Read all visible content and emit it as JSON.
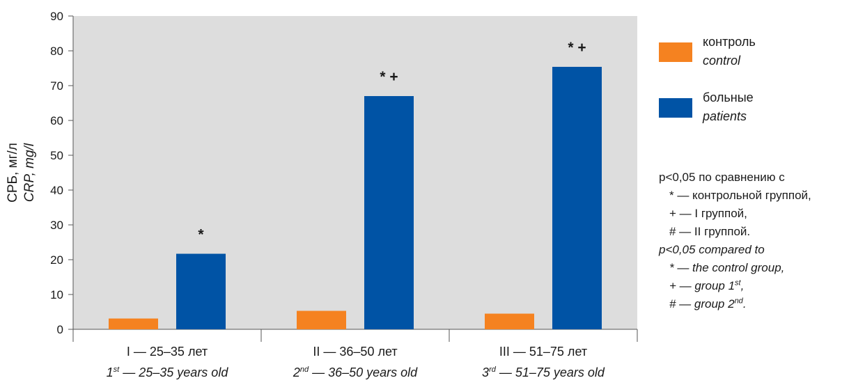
{
  "chart_data": {
    "type": "bar",
    "ylabel": "СРБ, мг/л",
    "ylabel_en": "CRP, mg/l",
    "ylim": [
      0,
      90
    ],
    "yticks": [
      0,
      10,
      20,
      30,
      40,
      50,
      60,
      70,
      80,
      90
    ],
    "grid": false,
    "categories": [
      {
        "ru": "I — 25–35 лет",
        "en_num": "1",
        "en_sup": "st",
        "en_rest": " — 25–35 years old"
      },
      {
        "ru": "II — 36–50 лет",
        "en_num": "2",
        "en_sup": "nd",
        "en_rest": " — 36–50 years old"
      },
      {
        "ru": "III — 51–75 лет",
        "en_num": "3",
        "en_sup": "rd",
        "en_rest": " — 51–75 years old"
      }
    ],
    "series": [
      {
        "name": "контроль",
        "name_en": "control",
        "color": "#f58220",
        "values": [
          3.1,
          5.3,
          4.5
        ]
      },
      {
        "name": "больные",
        "name_en": "patients",
        "color": "#0053a5",
        "values": [
          21.7,
          67,
          75.4
        ]
      }
    ],
    "annotations": [
      "*",
      "* +",
      "* +"
    ],
    "legend_position": "right"
  },
  "note": {
    "ru_head": "p<0,05 по сравнению с",
    "ru_items": [
      "* — контрольной группой,",
      "+ — I группой,",
      "# — II группой."
    ],
    "en_head": "p<0,05 compared to",
    "en_item1": "* — the control group,",
    "en_item2_a": "+ — group 1",
    "en_item2_sup": "st",
    "en_item2_b": ",",
    "en_item3_a": "# — group 2",
    "en_item3_sup": "nd",
    "en_item3_b": "."
  },
  "colors": {
    "plot_bg": "#dddddd",
    "axis": "#555555"
  }
}
